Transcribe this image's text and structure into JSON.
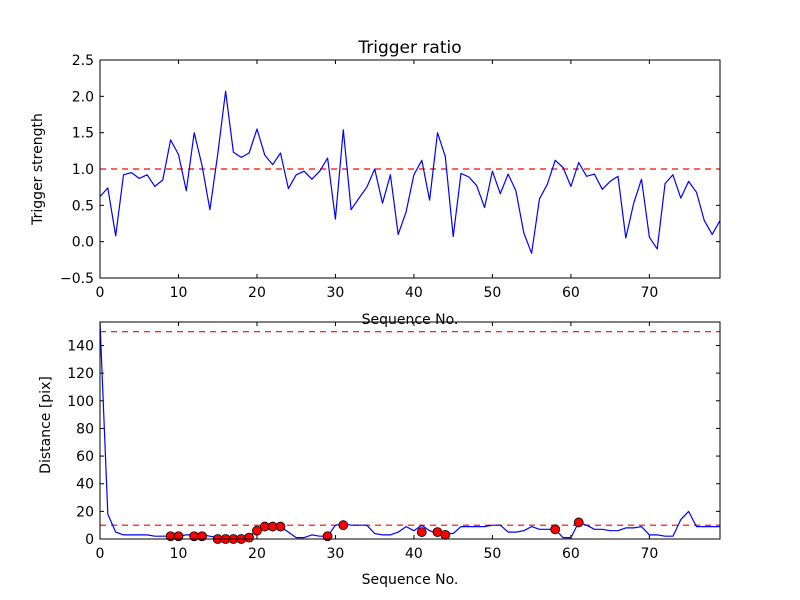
{
  "chart_data": [
    {
      "type": "line",
      "title": "Trigger ratio",
      "xlabel": "Sequence No.",
      "ylabel": "Trigger strength",
      "xlim": [
        0,
        79
      ],
      "ylim": [
        -0.5,
        2.5
      ],
      "xticks": [
        0,
        10,
        20,
        30,
        40,
        50,
        60,
        70
      ],
      "yticks": [
        -0.5,
        0.0,
        0.5,
        1.0,
        1.5,
        2.0,
        2.5
      ],
      "ytick_labels": [
        "−0.5",
        "0.0",
        "0.5",
        "1.0",
        "1.5",
        "2.0",
        "2.5"
      ],
      "threshold": 1.0,
      "threshold_color": "#ff0000",
      "series_color": "#0000ff",
      "values": [
        0.62,
        0.74,
        0.08,
        0.92,
        0.95,
        0.87,
        0.92,
        0.76,
        0.85,
        1.4,
        1.2,
        0.7,
        1.5,
        1.05,
        0.44,
        1.2,
        2.07,
        1.23,
        1.16,
        1.22,
        1.55,
        1.19,
        1.06,
        1.22,
        0.73,
        0.92,
        0.97,
        0.86,
        0.97,
        1.15,
        0.31,
        1.54,
        0.44,
        0.6,
        0.75,
        1.0,
        0.53,
        0.92,
        0.1,
        0.41,
        0.92,
        1.12,
        0.57,
        1.5,
        1.17,
        0.07,
        0.94,
        0.89,
        0.77,
        0.47,
        0.97,
        0.66,
        0.93,
        0.7,
        0.12,
        -0.16,
        0.59,
        0.79,
        1.12,
        1.02,
        0.76,
        1.09,
        0.9,
        0.93,
        0.72,
        0.83,
        0.9,
        0.05,
        0.53,
        0.86,
        0.06,
        -0.1,
        0.8,
        0.92,
        0.6,
        0.83,
        0.68,
        0.29,
        0.1,
        0.29
      ]
    },
    {
      "type": "line",
      "title": "",
      "xlabel": "Sequence No.",
      "ylabel": "Distance [pix]",
      "xlim": [
        0,
        79
      ],
      "ylim": [
        0,
        157
      ],
      "xticks": [
        0,
        10,
        20,
        30,
        40,
        50,
        60,
        70
      ],
      "yticks": [
        0,
        20,
        40,
        60,
        80,
        100,
        120,
        140
      ],
      "thresholds": [
        150,
        10
      ],
      "threshold_color": "#ff0000",
      "series_color": "#0000ff",
      "marker_color": "#ff0000",
      "values": [
        157,
        18,
        5,
        3,
        3,
        3,
        3,
        2,
        2,
        2,
        2,
        3,
        3,
        3,
        2,
        1,
        1,
        1,
        1,
        2,
        6,
        9,
        9,
        9,
        5,
        1,
        1,
        3,
        2,
        2,
        10,
        11,
        10,
        10,
        10,
        4,
        3,
        3,
        5,
        9,
        6,
        10,
        6,
        4,
        4,
        4,
        9,
        9,
        9,
        9,
        10,
        10,
        5,
        5,
        6,
        9,
        7,
        7,
        7,
        1,
        1,
        12,
        10,
        7,
        7,
        6,
        6,
        8,
        8,
        9,
        3,
        3,
        2,
        2,
        14,
        20,
        9,
        9,
        9,
        9
      ],
      "markers": [
        {
          "x": 9,
          "y": 2
        },
        {
          "x": 10,
          "y": 2
        },
        {
          "x": 12,
          "y": 2
        },
        {
          "x": 13,
          "y": 2
        },
        {
          "x": 15,
          "y": 0
        },
        {
          "x": 16,
          "y": 0
        },
        {
          "x": 17,
          "y": 0
        },
        {
          "x": 18,
          "y": 0
        },
        {
          "x": 19,
          "y": 1
        },
        {
          "x": 20,
          "y": 6
        },
        {
          "x": 21,
          "y": 9
        },
        {
          "x": 22,
          "y": 9
        },
        {
          "x": 23,
          "y": 9
        },
        {
          "x": 29,
          "y": 2
        },
        {
          "x": 31,
          "y": 10
        },
        {
          "x": 41,
          "y": 5
        },
        {
          "x": 43,
          "y": 5
        },
        {
          "x": 44,
          "y": 3
        },
        {
          "x": 58,
          "y": 7
        },
        {
          "x": 61,
          "y": 12
        }
      ]
    }
  ]
}
